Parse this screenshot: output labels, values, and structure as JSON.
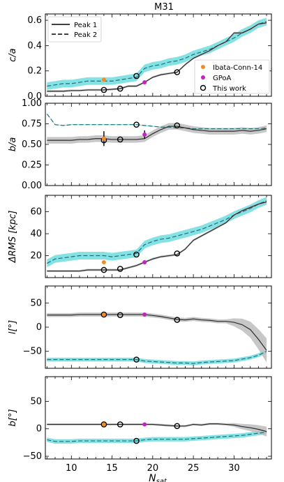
{
  "chart_data": {
    "type": "line",
    "title": "M31",
    "xlabel": "N_sat",
    "xlabel_main": "N",
    "xlabel_sub": "sat",
    "xlim": [
      6.8,
      34.6
    ],
    "xticks": [
      10,
      15,
      20,
      25,
      30
    ],
    "colors": {
      "peak1": "#2b2b2b",
      "peak2": "#1f6f78",
      "band1": "#bdbdbd",
      "band2": "#6fdde0",
      "ibata": "#f28c28",
      "gpoa": "#c81fc8"
    },
    "legends": {
      "lines": [
        {
          "label": "Peak 1",
          "style": "solid"
        },
        {
          "label": "Peak 2",
          "style": "dashed"
        }
      ],
      "markers": [
        {
          "label": "Ibata-Conn-14",
          "marker": "orange-dot"
        },
        {
          "label": "GPoA",
          "marker": "magenta-dot"
        },
        {
          "label": "This work",
          "marker": "open-circle"
        }
      ]
    },
    "panels": [
      {
        "id": "ca",
        "ylabel": "c/a",
        "ylim": [
          0,
          0.65
        ],
        "yticks": [
          0.0,
          0.2,
          0.4,
          0.6
        ],
        "ytick_labels": [
          "0.0",
          "0.2",
          "0.4",
          "0.6"
        ],
        "peak1": {
          "x": [
            7,
            8,
            9,
            10,
            11,
            12,
            13,
            14,
            15,
            16,
            17,
            18,
            19,
            20,
            21,
            22,
            23,
            24,
            25,
            26,
            27,
            28,
            29,
            30,
            31,
            32,
            33,
            34
          ],
          "y": [
            0.04,
            0.04,
            0.04,
            0.045,
            0.045,
            0.05,
            0.05,
            0.05,
            0.055,
            0.06,
            0.08,
            0.08,
            0.11,
            0.15,
            0.17,
            0.18,
            0.19,
            0.25,
            0.3,
            0.33,
            0.36,
            0.4,
            0.43,
            0.5,
            0.5,
            0.53,
            0.57,
            0.58
          ],
          "band": 0.008
        },
        "peak2": {
          "x": [
            7,
            8,
            9,
            10,
            11,
            12,
            13,
            14,
            15,
            16,
            17,
            18,
            19,
            20,
            21,
            22,
            23,
            24,
            25,
            26,
            27,
            28,
            29,
            30,
            31,
            32,
            33,
            34
          ],
          "y": [
            0.08,
            0.09,
            0.1,
            0.1,
            0.11,
            0.12,
            0.12,
            0.12,
            0.12,
            0.13,
            0.14,
            0.15,
            0.22,
            0.24,
            0.25,
            0.27,
            0.28,
            0.3,
            0.33,
            0.35,
            0.37,
            0.4,
            0.43,
            0.46,
            0.5,
            0.53,
            0.57,
            0.59
          ],
          "band": 0.03
        },
        "ibata": [
          {
            "x": 14,
            "y": 0.13
          }
        ],
        "gpoa": [
          {
            "x": 19,
            "y": 0.11
          }
        ],
        "this_work": [
          {
            "x": 14,
            "y": 0.05
          },
          {
            "x": 16,
            "y": 0.06
          },
          {
            "x": 18,
            "y": 0.16
          },
          {
            "x": 23,
            "y": 0.19
          }
        ]
      },
      {
        "id": "ba",
        "ylabel": "b/a",
        "ylim": [
          0,
          1.0
        ],
        "yticks": [
          0.0,
          0.25,
          0.5,
          0.75,
          1.0
        ],
        "ytick_labels": [
          "0.00",
          "0.25",
          "0.50",
          "0.75",
          "1.00"
        ],
        "peak1": {
          "x": [
            7,
            8,
            9,
            10,
            11,
            12,
            13,
            14,
            15,
            16,
            17,
            18,
            19,
            20,
            21,
            22,
            23,
            24,
            25,
            26,
            27,
            28,
            29,
            30,
            31,
            32,
            33,
            34
          ],
          "y": [
            0.55,
            0.55,
            0.55,
            0.55,
            0.56,
            0.56,
            0.57,
            0.57,
            0.56,
            0.56,
            0.56,
            0.56,
            0.57,
            0.63,
            0.68,
            0.72,
            0.72,
            0.7,
            0.68,
            0.67,
            0.66,
            0.66,
            0.66,
            0.66,
            0.67,
            0.66,
            0.67,
            0.69
          ],
          "band": 0.04
        },
        "peak2": {
          "x": [
            7,
            8,
            9,
            10,
            11,
            12,
            13,
            14,
            15,
            16,
            17,
            18,
            19,
            20,
            21,
            22,
            23,
            24,
            25,
            26,
            27,
            28,
            29,
            30,
            31,
            32,
            33,
            34
          ],
          "y": [
            0.87,
            0.74,
            0.73,
            0.74,
            0.74,
            0.74,
            0.74,
            0.74,
            0.74,
            0.74,
            0.74,
            0.74,
            0.73,
            0.72,
            0.71,
            0.71,
            0.7,
            0.7,
            0.69,
            0.69,
            0.69,
            0.69,
            0.69,
            0.69,
            0.69,
            0.69,
            0.69,
            0.7
          ],
          "band": 0.005
        },
        "ibata": [
          {
            "x": 14,
            "y": 0.57,
            "err": 0.09
          }
        ],
        "gpoa": [
          {
            "x": 19,
            "y": 0.62,
            "err": 0.05
          }
        ],
        "this_work": [
          {
            "x": 14,
            "y": 0.55
          },
          {
            "x": 16,
            "y": 0.56
          },
          {
            "x": 18,
            "y": 0.74
          },
          {
            "x": 23,
            "y": 0.73
          }
        ]
      },
      {
        "id": "drms",
        "ylabel": "ΔRMS [kpc]",
        "ylim": [
          0,
          75
        ],
        "yticks": [
          20,
          40,
          60
        ],
        "ytick_labels": [
          "20",
          "40",
          "60"
        ],
        "peak1": {
          "x": [
            7,
            8,
            9,
            10,
            11,
            12,
            13,
            14,
            15,
            16,
            17,
            18,
            19,
            20,
            21,
            22,
            23,
            24,
            25,
            26,
            27,
            28,
            29,
            30,
            31,
            32,
            33,
            34
          ],
          "y": [
            6,
            6,
            6,
            6,
            6,
            7,
            7,
            7,
            7,
            7,
            9,
            11,
            14,
            17,
            19,
            20,
            21,
            26,
            34,
            38,
            42,
            46,
            50,
            57,
            61,
            64,
            67,
            69
          ],
          "band": 1.0
        },
        "peak2": {
          "x": [
            7,
            8,
            9,
            10,
            11,
            12,
            13,
            14,
            15,
            16,
            17,
            18,
            19,
            20,
            21,
            22,
            23,
            24,
            25,
            26,
            27,
            28,
            29,
            30,
            31,
            32,
            33,
            34
          ],
          "y": [
            13,
            17,
            18,
            19,
            20,
            20,
            20,
            20,
            19,
            20,
            21,
            22,
            30,
            33,
            35,
            36,
            38,
            40,
            42,
            44,
            47,
            50,
            53,
            57,
            60,
            63,
            67,
            70
          ],
          "band": 3.5
        },
        "ibata": [
          {
            "x": 14,
            "y": 14
          }
        ],
        "gpoa": [
          {
            "x": 19,
            "y": 14
          }
        ],
        "this_work": [
          {
            "x": 14,
            "y": 7
          },
          {
            "x": 16,
            "y": 8
          },
          {
            "x": 18,
            "y": 21
          },
          {
            "x": 23,
            "y": 22
          }
        ]
      },
      {
        "id": "l",
        "ylabel": "l[°]",
        "ylim": [
          -85,
          85
        ],
        "yticks": [
          -50,
          0,
          50
        ],
        "ytick_labels": [
          "−50",
          "0",
          "50"
        ],
        "peak1": {
          "x": [
            7,
            8,
            9,
            10,
            11,
            12,
            13,
            14,
            15,
            16,
            17,
            18,
            19,
            20,
            21,
            22,
            23,
            24,
            25,
            26,
            27,
            28,
            29,
            30,
            31,
            32,
            33,
            34
          ],
          "y": [
            25,
            25,
            25,
            25,
            26,
            26,
            26,
            26,
            26,
            26,
            26,
            26,
            26,
            24,
            22,
            19,
            16,
            15,
            17,
            15,
            14,
            12,
            12,
            10,
            5,
            -5,
            -25,
            -48
          ],
          "band": 4,
          "band_extra": {
            "from_x": 29,
            "max": 25
          }
        },
        "peak2": {
          "x": [
            7,
            8,
            9,
            10,
            11,
            12,
            13,
            14,
            15,
            16,
            17,
            18,
            19,
            20,
            21,
            22,
            23,
            24,
            25,
            26,
            27,
            28,
            29,
            30,
            31,
            32,
            33,
            34
          ],
          "y": [
            -67,
            -67,
            -67,
            -67,
            -67,
            -67,
            -67,
            -67,
            -67,
            -67,
            -67,
            -67,
            -70,
            -71,
            -72,
            -73,
            -74,
            -74,
            -75,
            -73,
            -72,
            -71,
            -70,
            -69,
            -66,
            -63,
            -58,
            -50
          ],
          "band": 4
        },
        "ibata": [
          {
            "x": 14,
            "y": 26
          }
        ],
        "gpoa": [
          {
            "x": 19,
            "y": 26
          }
        ],
        "this_work": [
          {
            "x": 14,
            "y": 26
          },
          {
            "x": 16,
            "y": 25
          },
          {
            "x": 18,
            "y": -67
          },
          {
            "x": 23,
            "y": 15
          }
        ]
      },
      {
        "id": "b",
        "ylabel": "b[°]",
        "ylim": [
          -55,
          95
        ],
        "yticks": [
          -50,
          0,
          50
        ],
        "ytick_labels": [
          "−50",
          "0",
          "50"
        ],
        "peak1": {
          "x": [
            7,
            8,
            9,
            10,
            11,
            12,
            13,
            14,
            15,
            16,
            17,
            18,
            19,
            20,
            21,
            22,
            23,
            24,
            25,
            26,
            27,
            28,
            29,
            30,
            31,
            32,
            33,
            34
          ],
          "y": [
            8,
            8,
            8,
            8,
            8,
            8,
            8,
            8,
            8,
            8,
            8,
            8,
            8,
            8,
            7,
            6,
            5,
            5,
            8,
            7,
            9,
            9,
            8,
            7,
            4,
            2,
            -1,
            -5
          ],
          "band": 2,
          "band_extra": {
            "from_x": 29,
            "max": 9
          }
        },
        "peak2": {
          "x": [
            7,
            8,
            9,
            10,
            11,
            12,
            13,
            14,
            15,
            16,
            17,
            18,
            19,
            20,
            21,
            22,
            23,
            24,
            25,
            26,
            27,
            28,
            29,
            30,
            31,
            32,
            33,
            34
          ],
          "y": [
            -20,
            -23,
            -23,
            -23,
            -22,
            -22,
            -22,
            -22,
            -22,
            -22,
            -22,
            -22,
            -20,
            -19,
            -19,
            -19,
            -19,
            -19,
            -18,
            -17,
            -16,
            -15,
            -14,
            -13,
            -12,
            -10,
            -8,
            -6
          ],
          "band": 4
        },
        "ibata": [
          {
            "x": 14,
            "y": 8
          }
        ],
        "gpoa": [
          {
            "x": 19,
            "y": 8
          }
        ],
        "this_work": [
          {
            "x": 14,
            "y": 8
          },
          {
            "x": 16,
            "y": 8
          },
          {
            "x": 18,
            "y": -22
          },
          {
            "x": 23,
            "y": 5
          }
        ]
      }
    ]
  }
}
